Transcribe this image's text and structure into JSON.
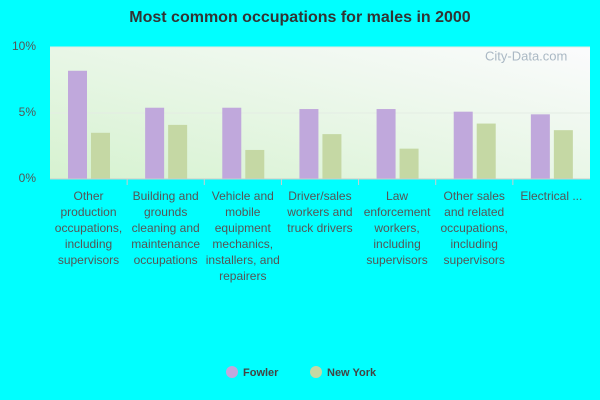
{
  "chart_data": {
    "type": "bar",
    "title": "Most common occupations for males in 2000",
    "watermark": "City-Data.com",
    "categories": [
      "Other production occupations, including supervisors",
      "Building and grounds cleaning and maintenance occupations",
      "Vehicle and mobile equipment mechanics, installers, and repairers",
      "Driver/sales workers and truck drivers",
      "Law enforcement workers, including supervisors",
      "Other sales and related occupations, including supervisors",
      "Electrical ..."
    ],
    "series": [
      {
        "name": "Fowler",
        "color": "#c0a8dc",
        "values": [
          8.2,
          5.4,
          5.4,
          5.3,
          5.3,
          5.1,
          4.9
        ]
      },
      {
        "name": "New York",
        "color": "#c5d8a4",
        "values": [
          3.5,
          4.1,
          2.2,
          3.4,
          2.3,
          4.2,
          3.7
        ]
      }
    ],
    "ylim": [
      0,
      10
    ],
    "yticks": [
      {
        "value": 0,
        "label": "0%"
      },
      {
        "value": 5,
        "label": "5%"
      },
      {
        "value": 10,
        "label": "10%"
      }
    ],
    "grid": true
  }
}
